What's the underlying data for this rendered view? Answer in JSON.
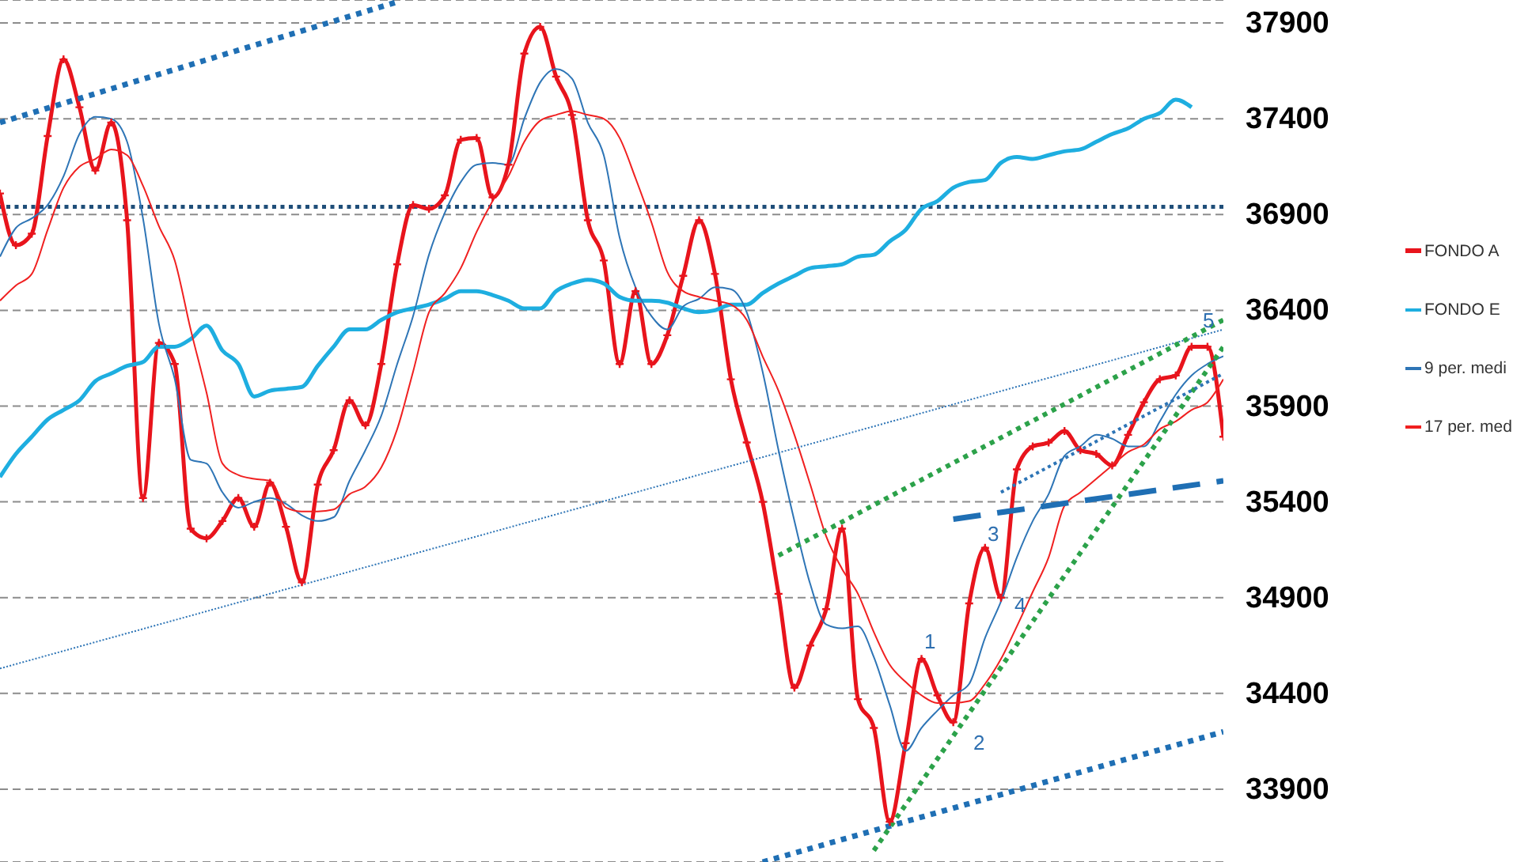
{
  "chart_data": {
    "type": "line",
    "categories": [
      null,
      null,
      null,
      null,
      null,
      null,
      null,
      null,
      null,
      null,
      null,
      null,
      null,
      null,
      null,
      null,
      null,
      null,
      null,
      null,
      null,
      null,
      null,
      null,
      null,
      null,
      null,
      null,
      null,
      null,
      null,
      null,
      null,
      null,
      null,
      null,
      null,
      null,
      null,
      null,
      null,
      null,
      null,
      null,
      null,
      null,
      null,
      null,
      null,
      null,
      null,
      null,
      null,
      null,
      null,
      null,
      null,
      null,
      null,
      null,
      null,
      null,
      null,
      null,
      null,
      null,
      null,
      null,
      null,
      null,
      null,
      null,
      null,
      null,
      null,
      null,
      null,
      null
    ],
    "ylim": [
      33520,
      38020
    ],
    "yticks": [
      33900,
      34400,
      34900,
      35400,
      35900,
      36400,
      36900,
      37400,
      37900
    ],
    "grid": "y",
    "legend": "right",
    "tick_labels": "y",
    "series": [
      {
        "name": "FONDO A",
        "color": "#e8141c",
        "marker": "cross",
        "values": [
          37010,
          36740,
          36800,
          37310,
          37710,
          37460,
          37130,
          37380,
          36870,
          35420,
          36230,
          36120,
          35260,
          35210,
          35300,
          35420,
          35270,
          35500,
          35270,
          34980,
          35490,
          35670,
          35930,
          35800,
          36120,
          36640,
          36950,
          36930,
          37000,
          37290,
          37300,
          36990,
          37160,
          37740,
          37880,
          37620,
          37420,
          36870,
          36660,
          36120,
          36500,
          36120,
          36270,
          36580,
          36870,
          36590,
          36040,
          35710,
          35400,
          34920,
          34430,
          34650,
          34840,
          35260,
          34370,
          34220,
          33730,
          34140,
          34580,
          34390,
          34250,
          34870,
          35160,
          34900,
          35570,
          35690,
          35710,
          35770,
          35670,
          35650,
          35590,
          35750,
          35920,
          36040,
          36060,
          36210,
          36210,
          35740
        ]
      },
      {
        "name": "FONDO E",
        "color": "#1eaee0",
        "values": [
          35530,
          35650,
          35740,
          35830,
          35880,
          35930,
          36030,
          36070,
          36110,
          36130,
          36210,
          36210,
          36250,
          36320,
          36190,
          36120,
          35950,
          35980,
          35990,
          36000,
          36110,
          36210,
          36300,
          36300,
          36350,
          36390,
          36410,
          36430,
          36460,
          36500,
          36500,
          36480,
          36450,
          36410,
          36410,
          36500,
          36540,
          36560,
          36540,
          36470,
          36450,
          36450,
          36440,
          36410,
          36390,
          36400,
          36430,
          36430,
          36490,
          36540,
          36580,
          36620,
          36630,
          36640,
          36680,
          36690,
          36760,
          36820,
          36930,
          36970,
          37040,
          37070,
          37080,
          37170,
          37200,
          37190,
          37210,
          37230,
          37240,
          37280,
          37320,
          37350,
          37400,
          37430,
          37500,
          37460,
          null,
          null
        ]
      },
      {
        "name": "9 per. medi",
        "color": "#2e75b6",
        "values": [
          36680,
          36830,
          36880,
          36950,
          37100,
          37320,
          37410,
          37400,
          37280,
          36880,
          36330,
          36040,
          35620,
          35600,
          35450,
          35370,
          35400,
          35420,
          35390,
          35330,
          35300,
          35320,
          35510,
          35670,
          35850,
          36120,
          36370,
          36690,
          36910,
          37070,
          37160,
          37170,
          37160,
          37400,
          37590,
          37660,
          37610,
          37380,
          37210,
          36780,
          36520,
          36370,
          36300,
          36420,
          36460,
          36520,
          36510,
          36390,
          36080,
          35670,
          35300,
          34970,
          34760,
          34740,
          34750,
          34590,
          34340,
          34100,
          34220,
          34310,
          34390,
          34450,
          34690,
          34880,
          35110,
          35300,
          35440,
          35640,
          35690,
          35750,
          35730,
          35690,
          35690,
          35820,
          35960,
          36060,
          36120,
          36160
        ]
      },
      {
        "name": "17 per. med",
        "color": "#f02020",
        "values": [
          36450,
          36530,
          36590,
          36820,
          37040,
          37150,
          37190,
          37240,
          37210,
          37050,
          36840,
          36660,
          36300,
          35970,
          35600,
          35540,
          35520,
          35510,
          35370,
          35350,
          35350,
          35360,
          35440,
          35480,
          35580,
          35780,
          36080,
          36390,
          36490,
          36620,
          36810,
          36970,
          37100,
          37280,
          37390,
          37420,
          37440,
          37420,
          37400,
          37300,
          37090,
          36860,
          36600,
          36500,
          36470,
          36450,
          36430,
          36350,
          36160,
          35980,
          35750,
          35490,
          35220,
          35050,
          34920,
          34720,
          34550,
          34460,
          34390,
          34350,
          34350,
          34360,
          34450,
          34580,
          34750,
          34930,
          35110,
          35380,
          35450,
          35520,
          35590,
          35660,
          35700,
          35780,
          35820,
          35880,
          35920,
          36040
        ]
      },
      {
        "type": "line",
        "color": "#1f6fb4",
        "line_style": "dotted",
        "values": [
          37380,
          null,
          null,
          null,
          null,
          null,
          null,
          null,
          null,
          null,
          null,
          null,
          null,
          null,
          null,
          null,
          null,
          null,
          null,
          null,
          null,
          null,
          null,
          null,
          null,
          38010,
          null,
          null,
          null,
          null,
          null,
          null,
          null,
          null,
          null,
          null,
          null,
          null,
          null,
          null,
          null,
          null,
          null,
          null,
          null,
          null,
          null,
          null,
          null,
          null,
          null,
          null,
          null,
          null,
          null,
          null,
          null,
          null,
          null,
          null,
          null,
          null,
          null,
          null,
          null,
          null,
          null,
          null,
          null,
          null,
          null,
          null,
          null,
          null,
          null,
          null,
          null,
          null
        ]
      },
      {
        "type": "line",
        "color": "#2e75b6",
        "line_style": "dotted",
        "values": [
          34530,
          null,
          null,
          null,
          null,
          null,
          null,
          null,
          null,
          null,
          null,
          null,
          null,
          null,
          null,
          null,
          null,
          null,
          null,
          null,
          null,
          null,
          null,
          null,
          null,
          null,
          null,
          null,
          null,
          null,
          null,
          null,
          null,
          null,
          null,
          null,
          null,
          null,
          null,
          null,
          null,
          null,
          null,
          null,
          null,
          null,
          null,
          null,
          null,
          null,
          null,
          null,
          null,
          null,
          null,
          null,
          null,
          null,
          null,
          null,
          null,
          null,
          null,
          null,
          null,
          null,
          null,
          null,
          null,
          null,
          null,
          null,
          null,
          null,
          null,
          null,
          null,
          36300
        ]
      },
      {
        "type": "line",
        "color": "#1f6fb4",
        "line_style": "dotted",
        "values": [
          null,
          null,
          null,
          null,
          null,
          null,
          null,
          null,
          null,
          null,
          null,
          null,
          null,
          null,
          null,
          null,
          null,
          null,
          null,
          null,
          null,
          null,
          null,
          null,
          null,
          null,
          null,
          null,
          null,
          null,
          null,
          null,
          null,
          null,
          null,
          null,
          null,
          null,
          null,
          null,
          null,
          null,
          null,
          null,
          null,
          null,
          null,
          null,
          33520,
          null,
          null,
          null,
          null,
          null,
          null,
          null,
          null,
          null,
          null,
          null,
          null,
          null,
          null,
          null,
          null,
          null,
          null,
          null,
          null,
          null,
          null,
          null,
          null,
          null,
          null,
          null,
          null,
          34200
        ]
      },
      {
        "type": "line",
        "color": "#2ca24a",
        "line_style": "dotted",
        "values": [
          null,
          null,
          null,
          null,
          null,
          null,
          null,
          null,
          null,
          null,
          null,
          null,
          null,
          null,
          null,
          null,
          null,
          null,
          null,
          null,
          null,
          null,
          null,
          null,
          null,
          null,
          null,
          null,
          null,
          null,
          null,
          null,
          null,
          null,
          null,
          null,
          null,
          null,
          null,
          null,
          null,
          null,
          null,
          null,
          null,
          null,
          null,
          null,
          null,
          null,
          null,
          null,
          null,
          null,
          null,
          33580,
          null,
          null,
          null,
          null,
          null,
          null,
          null,
          null,
          null,
          null,
          null,
          null,
          null,
          null,
          null,
          null,
          null,
          null,
          null,
          null,
          null,
          36210
        ]
      },
      {
        "type": "line",
        "color": "#2ca24a",
        "line_style": "dotted",
        "values": [
          null,
          null,
          null,
          null,
          null,
          null,
          null,
          null,
          null,
          null,
          null,
          null,
          null,
          null,
          null,
          null,
          null,
          null,
          null,
          null,
          null,
          null,
          null,
          null,
          null,
          null,
          null,
          null,
          null,
          null,
          null,
          null,
          null,
          null,
          null,
          null,
          null,
          null,
          null,
          null,
          null,
          null,
          null,
          null,
          null,
          null,
          null,
          null,
          null,
          35120,
          null,
          null,
          null,
          null,
          null,
          null,
          null,
          null,
          null,
          null,
          null,
          null,
          null,
          null,
          null,
          null,
          null,
          null,
          null,
          null,
          null,
          null,
          null,
          null,
          null,
          null,
          null,
          36350
        ]
      },
      {
        "type": "line",
        "color": "#2e75b6",
        "line_style": "dotted",
        "values": [
          null,
          null,
          null,
          null,
          null,
          null,
          null,
          null,
          null,
          null,
          null,
          null,
          null,
          null,
          null,
          null,
          null,
          null,
          null,
          null,
          null,
          null,
          null,
          null,
          null,
          null,
          null,
          null,
          null,
          null,
          null,
          null,
          null,
          null,
          null,
          null,
          null,
          null,
          null,
          null,
          null,
          null,
          null,
          null,
          null,
          null,
          null,
          null,
          null,
          null,
          null,
          null,
          null,
          null,
          null,
          null,
          null,
          null,
          null,
          null,
          null,
          null,
          null,
          35450,
          null,
          null,
          null,
          null,
          null,
          null,
          null,
          null,
          null,
          null,
          null,
          null,
          null,
          36070
        ]
      },
      {
        "type": "line",
        "color": "#1f6fb4",
        "line_style": "dashed",
        "values": [
          null,
          null,
          null,
          null,
          null,
          null,
          null,
          null,
          null,
          null,
          null,
          null,
          null,
          null,
          null,
          null,
          null,
          null,
          null,
          null,
          null,
          null,
          null,
          null,
          null,
          null,
          null,
          null,
          null,
          null,
          null,
          null,
          null,
          null,
          null,
          null,
          null,
          null,
          null,
          null,
          null,
          null,
          null,
          null,
          null,
          null,
          null,
          null,
          null,
          null,
          null,
          null,
          null,
          null,
          null,
          null,
          null,
          null,
          null,
          null,
          35310,
          null,
          null,
          null,
          null,
          null,
          null,
          null,
          null,
          null,
          null,
          null,
          null,
          null,
          null,
          null,
          null,
          35510
        ]
      }
    ],
    "ref_lines": [
      {
        "axis": "y",
        "value": 36940,
        "color": "#1f4e79",
        "line_style": "dotted"
      }
    ],
    "annotations": [
      "1",
      "2",
      "3",
      "4",
      "5"
    ]
  }
}
